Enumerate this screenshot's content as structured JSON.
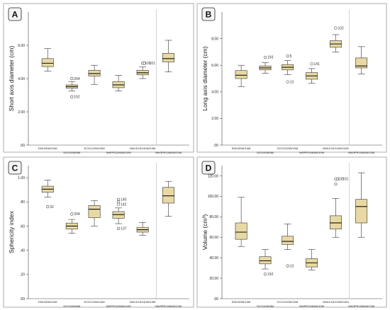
{
  "chart_data": [
    {
      "type": "boxplot",
      "panel_label": "A",
      "title": "",
      "xlabel": "",
      "ylabel": "Short axis diameter (cm)",
      "ylim": [
        0,
        8
      ],
      "yticks": [
        ".00",
        "2.00",
        "4.00",
        "6.00"
      ],
      "ytick_values": [
        0,
        2,
        4,
        6
      ],
      "categories": [
        "EM/150W/10M",
        "SG/140W/6M",
        "ECO/120W/10M",
        "NWPR15/65W/10M",
        "NWLK15/140W/10M",
        "NW3PR15/65W/10M"
      ],
      "series": [
        {
          "min": 4.45,
          "q1": 4.72,
          "median": 4.92,
          "q3": 5.2,
          "max": 5.8,
          "outliers": []
        },
        {
          "min": 3.25,
          "q1": 3.42,
          "median": 3.52,
          "q3": 3.62,
          "max": 3.82,
          "outliers": [
            {
              "value": 4.0,
              "label": "204"
            },
            {
              "value": 2.9,
              "label": "192"
            }
          ]
        },
        {
          "min": 3.65,
          "q1": 4.15,
          "median": 4.3,
          "q3": 4.5,
          "max": 4.8,
          "outliers": []
        },
        {
          "min": 3.25,
          "q1": 3.45,
          "median": 3.62,
          "q3": 3.82,
          "max": 4.2,
          "outliers": []
        },
        {
          "min": 4.0,
          "q1": 4.22,
          "median": 4.35,
          "q3": 4.5,
          "max": 4.7,
          "outliers": [
            {
              "value": 4.92,
              "label": "100"
            },
            {
              "value": 4.92,
              "label": "101"
            }
          ]
        },
        {
          "min": 4.4,
          "q1": 5.0,
          "median": 5.2,
          "q3": 5.52,
          "max": 6.3,
          "outliers": []
        }
      ]
    },
    {
      "type": "boxplot",
      "panel_label": "B",
      "title": "",
      "xlabel": "",
      "ylabel": "Long axis diameter (cm)",
      "ylim": [
        0,
        10
      ],
      "yticks": [
        ".00",
        "2.00",
        "4.00",
        "6.00",
        "8.00"
      ],
      "ytick_values": [
        0,
        2,
        4,
        6,
        8
      ],
      "categories": [
        "EM/150W/10M",
        "SG/140W/6M",
        "ECO/120W/10M",
        "NWPR15/65W/10M",
        "NWLK15/140W/10M",
        "NW3PR15/65W/10M"
      ],
      "series": [
        {
          "min": 4.4,
          "q1": 5.0,
          "median": 5.25,
          "q3": 5.6,
          "max": 6.0,
          "outliers": []
        },
        {
          "min": 5.4,
          "q1": 5.65,
          "median": 5.8,
          "q3": 5.95,
          "max": 6.2,
          "outliers": [
            {
              "value": 6.6,
              "label": "193"
            }
          ]
        },
        {
          "min": 5.3,
          "q1": 5.65,
          "median": 5.85,
          "q3": 6.05,
          "max": 6.35,
          "outliers": [
            {
              "value": 6.7,
              "label": "5"
            },
            {
              "value": 4.75,
              "label": "13"
            }
          ]
        },
        {
          "min": 4.65,
          "q1": 4.95,
          "median": 5.2,
          "q3": 5.45,
          "max": 5.75,
          "outliers": [
            {
              "value": 6.1,
              "label": "141"
            }
          ]
        },
        {
          "min": 7.0,
          "q1": 7.35,
          "median": 7.6,
          "q3": 7.85,
          "max": 8.3,
          "outliers": [
            {
              "value": 8.8,
              "label": "102"
            }
          ]
        },
        {
          "min": 5.35,
          "q1": 5.8,
          "median": 5.95,
          "q3": 6.55,
          "max": 7.4,
          "outliers": []
        }
      ]
    },
    {
      "type": "boxplot",
      "panel_label": "C",
      "title": "",
      "xlabel": "",
      "ylabel": "Sphericity index",
      "ylim": [
        0,
        1.1
      ],
      "yticks": [
        ".00",
        ".20",
        ".40",
        ".60",
        ".80",
        "1.00"
      ],
      "ytick_values": [
        0,
        0.2,
        0.4,
        0.6,
        0.8,
        1.0
      ],
      "categories": [
        "EM/150W/10M",
        "SG/140W/6M",
        "ECO/120W/10M",
        "NWPR15/65W/10M",
        "NWLK15/140W/10M",
        "NW3PR15/65W/10M"
      ],
      "series": [
        {
          "min": 0.84,
          "q1": 0.88,
          "median": 0.905,
          "q3": 0.93,
          "max": 0.98,
          "outliers": [
            {
              "value": 0.76,
              "label": "32"
            }
          ]
        },
        {
          "min": 0.54,
          "q1": 0.575,
          "median": 0.6,
          "q3": 0.625,
          "max": 0.655,
          "outliers": [
            {
              "value": 0.7,
              "label": "204"
            }
          ]
        },
        {
          "min": 0.6,
          "q1": 0.67,
          "median": 0.74,
          "q3": 0.77,
          "max": 0.81,
          "outliers": []
        },
        {
          "min": 0.62,
          "q1": 0.665,
          "median": 0.695,
          "q3": 0.72,
          "max": 0.75,
          "outliers": [
            {
              "value": 0.82,
              "label": "140"
            },
            {
              "value": 0.8,
              "label": ""
            },
            {
              "value": 0.78,
              "label": "142"
            },
            {
              "value": 0.58,
              "label": "137"
            }
          ]
        },
        {
          "min": 0.525,
          "q1": 0.55,
          "median": 0.57,
          "q3": 0.59,
          "max": 0.63,
          "outliers": []
        },
        {
          "min": 0.68,
          "q1": 0.79,
          "median": 0.85,
          "q3": 0.92,
          "max": 0.97,
          "outliers": []
        }
      ]
    },
    {
      "type": "boxplot",
      "panel_label": "D",
      "title": "",
      "xlabel": "",
      "ylabel": "Volume (cm³)",
      "ylim": [
        0,
        130
      ],
      "yticks": [
        ".00",
        "20.00",
        "40.00",
        "60.00",
        "80.00",
        "100.00",
        "120.00"
      ],
      "ytick_values": [
        0,
        20,
        40,
        60,
        80,
        100,
        120
      ],
      "categories": [
        "EM/150W/10M",
        "SG/140W/6M",
        "ECO/120W/10M",
        "NWPR15/65W/10M",
        "NWLK15/140W/10M",
        "NW3PR15/65W/10M"
      ],
      "series": [
        {
          "min": 51,
          "q1": 58,
          "median": 65,
          "q3": 74,
          "max": 99,
          "outliers": []
        },
        {
          "min": 29,
          "q1": 34,
          "median": 37,
          "q3": 41,
          "max": 48,
          "outliers": [
            {
              "value": 24,
              "label": "192"
            }
          ]
        },
        {
          "min": 48,
          "q1": 53,
          "median": 56,
          "q3": 61,
          "max": 73,
          "outliers": [
            {
              "value": 32,
              "label": "13"
            }
          ]
        },
        {
          "min": 28,
          "q1": 31,
          "median": 35,
          "q3": 39,
          "max": 48,
          "outliers": []
        },
        {
          "min": 60,
          "q1": 68,
          "median": 74,
          "q3": 81,
          "max": 98,
          "outliers": [
            {
              "value": 117,
              "label": "100"
            },
            {
              "value": 117,
              "label": "101"
            },
            {
              "value": 112,
              "label": ""
            }
          ]
        },
        {
          "min": 60,
          "q1": 74,
          "median": 90,
          "q3": 97,
          "max": 123,
          "outliers": []
        }
      ]
    }
  ]
}
